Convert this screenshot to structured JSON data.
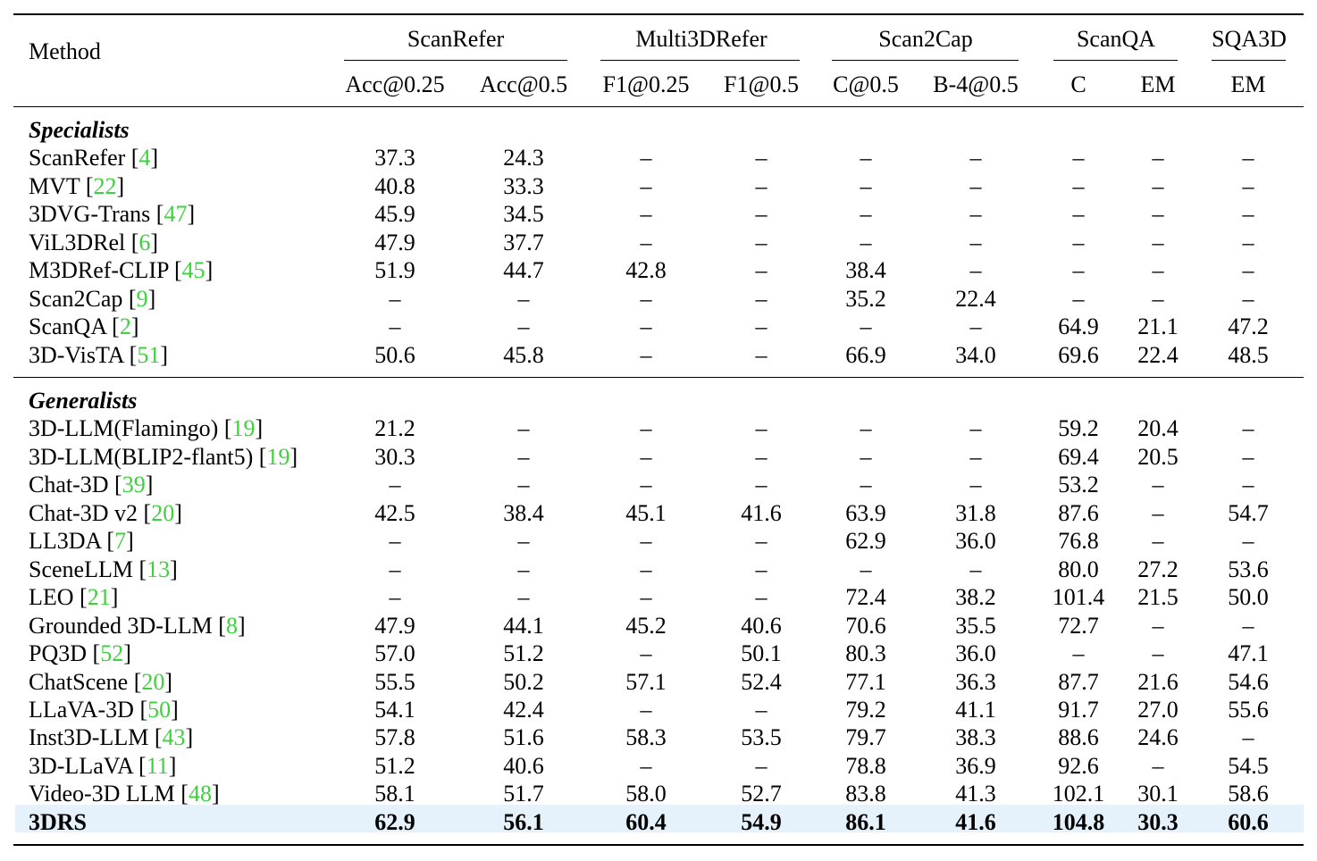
{
  "headers": {
    "method": "Method",
    "groups": [
      "ScanRefer",
      "Multi3DRefer",
      "Scan2Cap",
      "ScanQA",
      "SQA3D"
    ],
    "metrics": [
      "Acc@0.25",
      "Acc@0.5",
      "F1@0.25",
      "F1@0.5",
      "C@0.5",
      "B-4@0.5",
      "C",
      "EM",
      "EM"
    ]
  },
  "sections": [
    {
      "title": "Specialists",
      "rows": [
        {
          "name": "ScanRefer",
          "ref": "4",
          "values": [
            "37.3",
            "24.3",
            "–",
            "–",
            "–",
            "–",
            "–",
            "–",
            "–"
          ]
        },
        {
          "name": "MVT",
          "ref": "22",
          "values": [
            "40.8",
            "33.3",
            "–",
            "–",
            "–",
            "–",
            "–",
            "–",
            "–"
          ]
        },
        {
          "name": "3DVG-Trans",
          "ref": "47",
          "values": [
            "45.9",
            "34.5",
            "–",
            "–",
            "–",
            "–",
            "–",
            "–",
            "–"
          ]
        },
        {
          "name": "ViL3DRel",
          "ref": "6",
          "values": [
            "47.9",
            "37.7",
            "–",
            "–",
            "–",
            "–",
            "–",
            "–",
            "–"
          ]
        },
        {
          "name": "M3DRef-CLIP",
          "ref": "45",
          "values": [
            "51.9",
            "44.7",
            "42.8",
            "–",
            "38.4",
            "–",
            "–",
            "–",
            "–"
          ]
        },
        {
          "name": "Scan2Cap",
          "ref": "9",
          "values": [
            "–",
            "–",
            "–",
            "–",
            "35.2",
            "22.4",
            "–",
            "–",
            "–"
          ]
        },
        {
          "name": "ScanQA",
          "ref": "2",
          "values": [
            "–",
            "–",
            "–",
            "–",
            "–",
            "–",
            "64.9",
            "21.1",
            "47.2"
          ]
        },
        {
          "name": "3D-VisTA",
          "ref": "51",
          "values": [
            "50.6",
            "45.8",
            "–",
            "–",
            "66.9",
            "34.0",
            "69.6",
            "22.4",
            "48.5"
          ]
        }
      ]
    },
    {
      "title": "Generalists",
      "rows": [
        {
          "name": "3D-LLM(Flamingo)",
          "ref": "19",
          "values": [
            "21.2",
            "–",
            "–",
            "–",
            "–",
            "–",
            "59.2",
            "20.4",
            "–"
          ]
        },
        {
          "name": "3D-LLM(BLIP2-flant5)",
          "ref": "19",
          "values": [
            "30.3",
            "–",
            "–",
            "–",
            "–",
            "–",
            "69.4",
            "20.5",
            "–"
          ]
        },
        {
          "name": "Chat-3D",
          "ref": "39",
          "values": [
            "–",
            "–",
            "–",
            "–",
            "–",
            "–",
            "53.2",
            "–",
            "–"
          ]
        },
        {
          "name": "Chat-3D v2",
          "ref": "20",
          "values": [
            "42.5",
            "38.4",
            "45.1",
            "41.6",
            "63.9",
            "31.8",
            "87.6",
            "–",
            "54.7"
          ]
        },
        {
          "name": "LL3DA",
          "ref": "7",
          "values": [
            "–",
            "–",
            "–",
            "–",
            "62.9",
            "36.0",
            "76.8",
            "–",
            "–"
          ]
        },
        {
          "name": "SceneLLM",
          "ref": "13",
          "values": [
            "–",
            "–",
            "–",
            "–",
            "–",
            "–",
            "80.0",
            "27.2",
            "53.6"
          ]
        },
        {
          "name": "LEO",
          "ref": "21",
          "values": [
            "–",
            "–",
            "–",
            "–",
            "72.4",
            "38.2",
            "101.4",
            "21.5",
            "50.0"
          ]
        },
        {
          "name": "Grounded 3D-LLM",
          "ref": "8",
          "values": [
            "47.9",
            "44.1",
            "45.2",
            "40.6",
            "70.6",
            "35.5",
            "72.7",
            "–",
            "–"
          ]
        },
        {
          "name": "PQ3D",
          "ref": "52",
          "values": [
            "57.0",
            "51.2",
            "–",
            "50.1",
            "80.3",
            "36.0",
            "–",
            "–",
            "47.1"
          ]
        },
        {
          "name": "ChatScene",
          "ref": "20",
          "values": [
            "55.5",
            "50.2",
            "57.1",
            "52.4",
            "77.1",
            "36.3",
            "87.7",
            "21.6",
            "54.6"
          ]
        },
        {
          "name": "LLaVA-3D",
          "ref": "50",
          "values": [
            "54.1",
            "42.4",
            "–",
            "–",
            "79.2",
            "41.1",
            "91.7",
            "27.0",
            "55.6"
          ]
        },
        {
          "name": "Inst3D-LLM",
          "ref": "43",
          "values": [
            "57.8",
            "51.6",
            "58.3",
            "53.5",
            "79.7",
            "38.3",
            "88.6",
            "24.6",
            "–"
          ]
        },
        {
          "name": "3D-LLaVA",
          "ref": "11",
          "values": [
            "51.2",
            "40.6",
            "–",
            "–",
            "78.8",
            "36.9",
            "92.6",
            "–",
            "54.5"
          ]
        },
        {
          "name": "Video-3D LLM",
          "ref": "48",
          "values": [
            "58.1",
            "51.7",
            "58.0",
            "52.7",
            "83.8",
            "41.3",
            "102.1",
            "30.1",
            "58.6"
          ]
        }
      ]
    }
  ],
  "final": {
    "name": "3DRS",
    "values": [
      "62.9",
      "56.1",
      "60.4",
      "54.9",
      "86.1",
      "41.6",
      "104.8",
      "30.3",
      "60.6"
    ]
  },
  "colors": {
    "ref": "#3dd13d",
    "highlight": "#e6f2fb"
  }
}
